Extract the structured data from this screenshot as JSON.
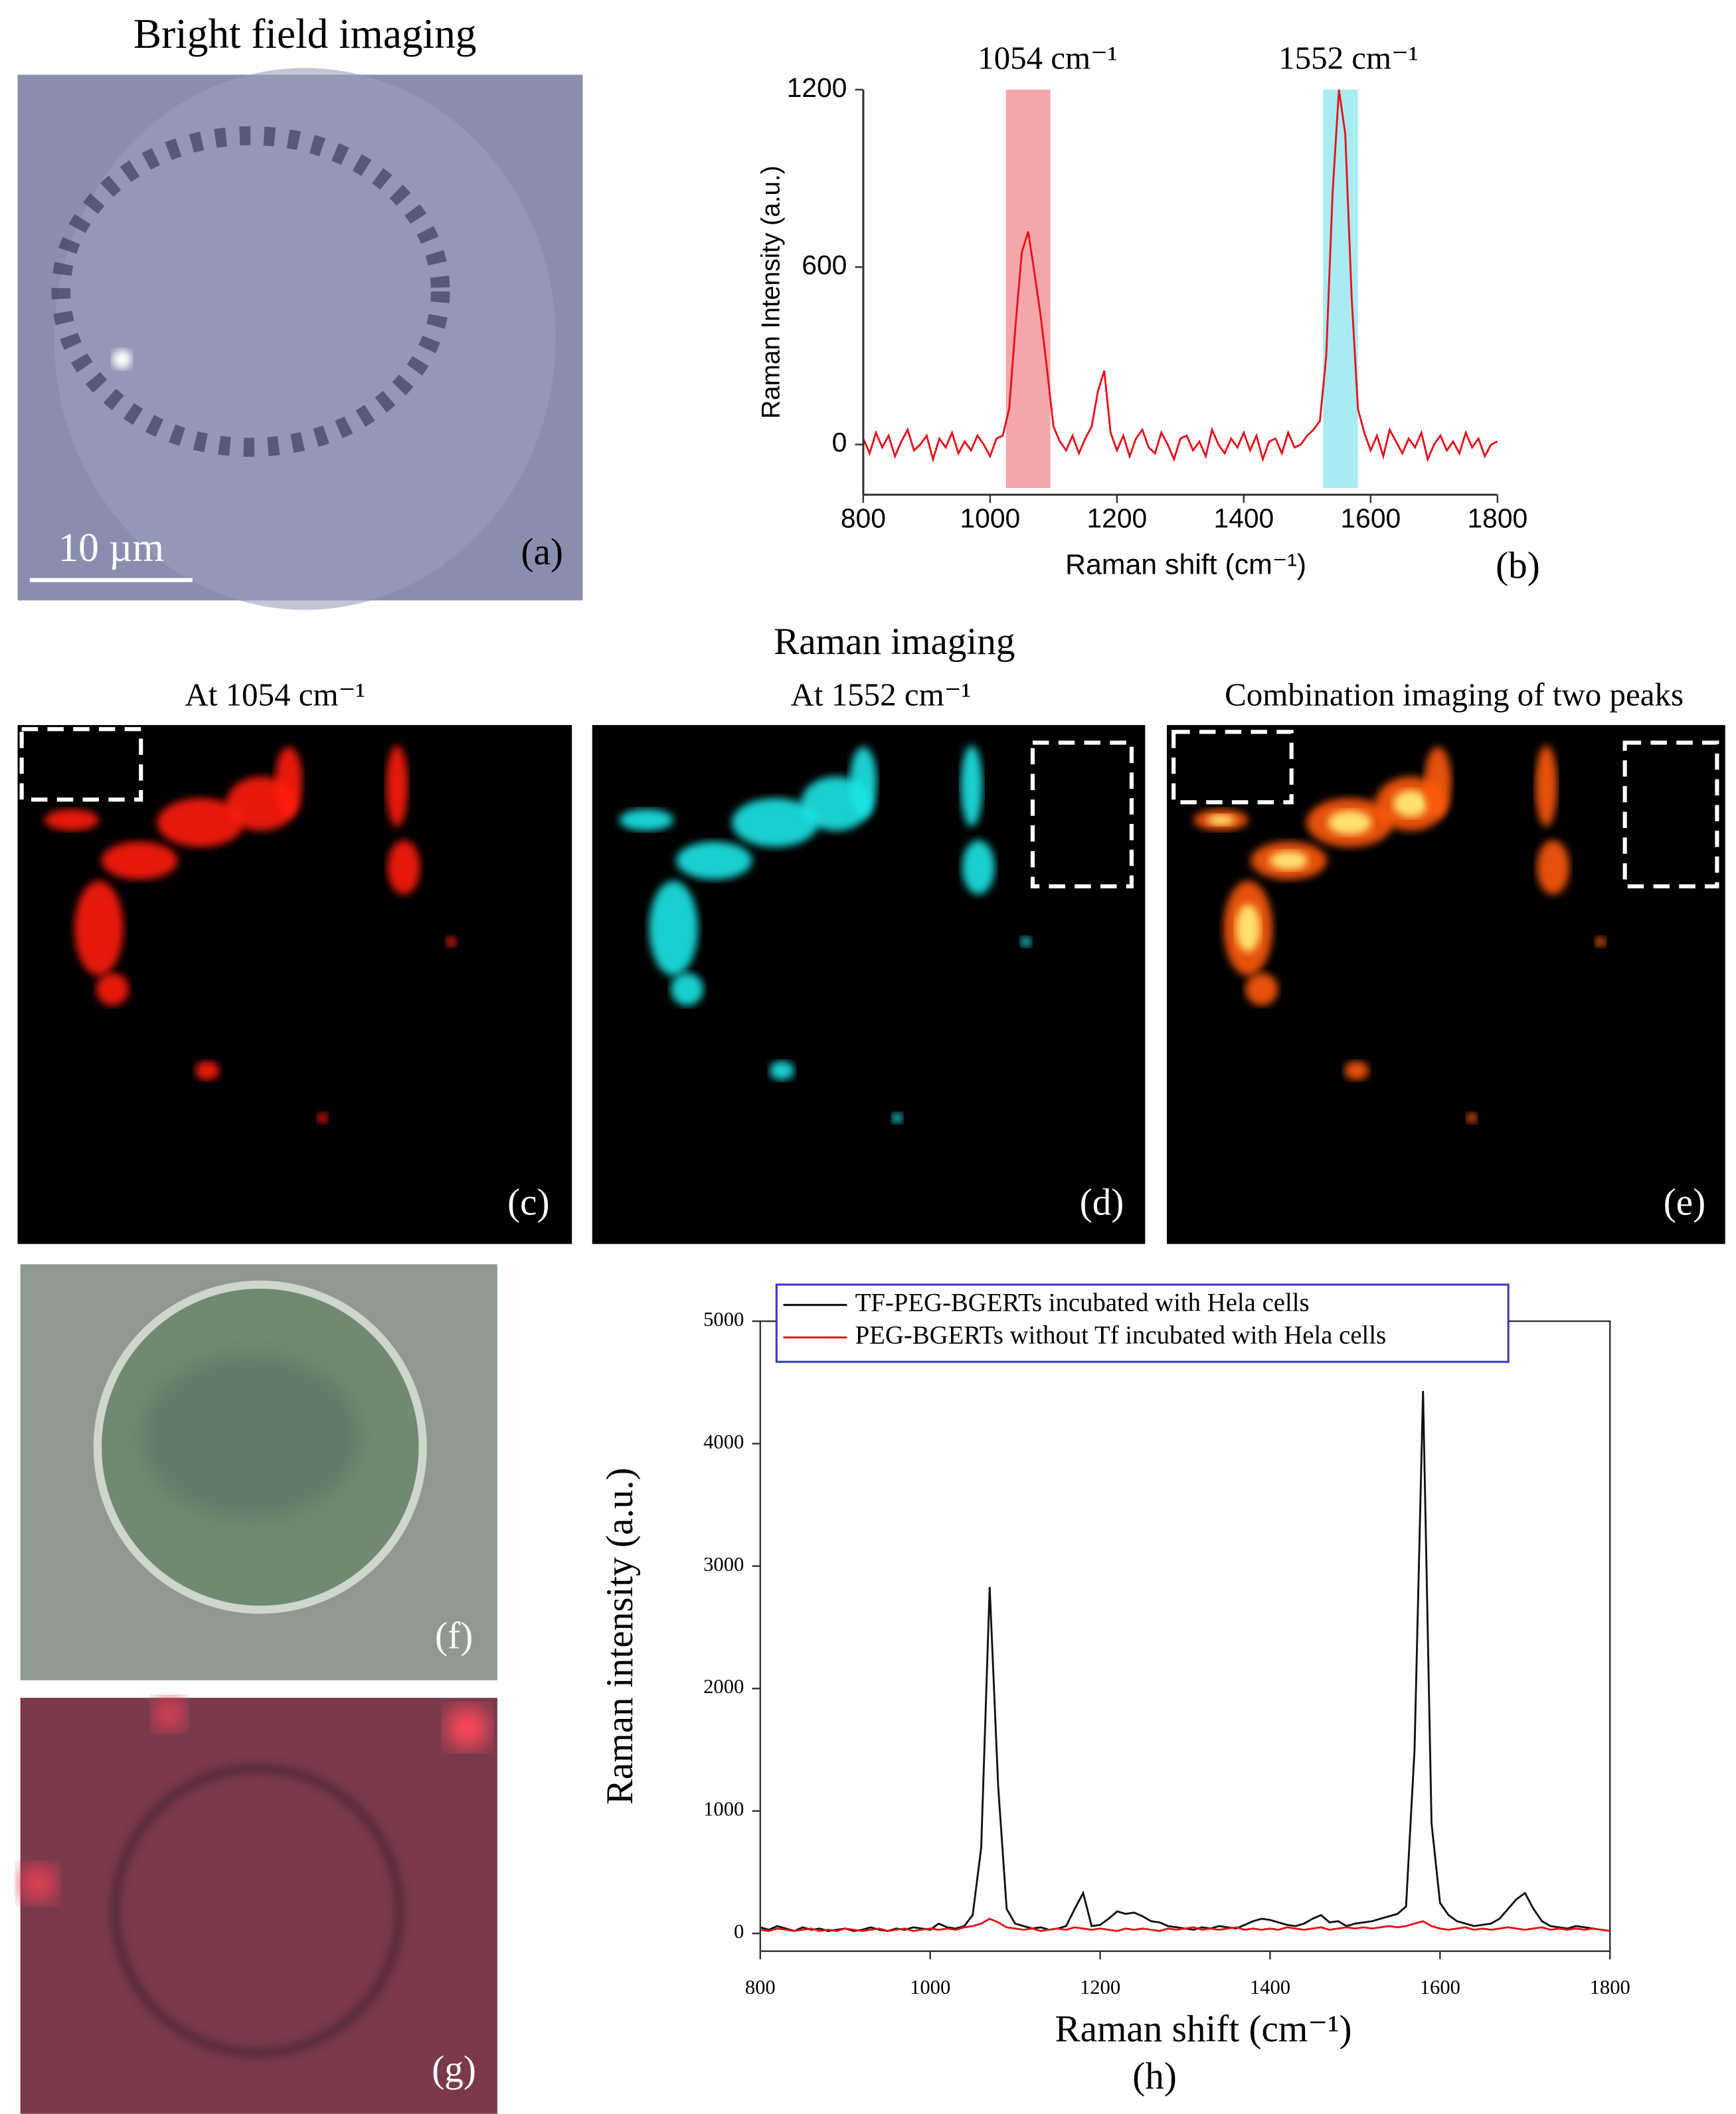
{
  "texts": {
    "bright_field_title": "Bright field imaging",
    "raman_imaging_title": "Raman imaging",
    "c_title": "At 1054 cm⁻¹",
    "d_title": "At 1552 cm⁻¹",
    "e_title": "Combination imaging of two peaks",
    "scale_bar": "10 µm"
  },
  "panel_labels": [
    "(a)",
    "(b)",
    "(c)",
    "(d)",
    "(e)",
    "(f)",
    "(g)",
    "(h)"
  ],
  "chart_data": [
    {
      "type": "line",
      "xlabel": "Raman shift (cm⁻¹)",
      "ylabel": "Raman Intensity (a.u.)",
      "color": "#e8101a",
      "annotations": [
        "1054 cm⁻¹",
        "1552 cm⁻¹"
      ],
      "bands": [
        {
          "range": [
            1025,
            1095
          ],
          "color": "#f4a6aa"
        },
        {
          "range": [
            1525,
            1580
          ],
          "color": "#a8ecf2"
        }
      ],
      "xlim": [
        800,
        1800
      ],
      "ylim": [
        -170,
        1200
      ],
      "xticks": [
        800,
        1000,
        1200,
        1400,
        1600,
        1800
      ],
      "yticks": [
        0,
        600,
        1200
      ],
      "x": [
        800,
        810,
        820,
        830,
        840,
        850,
        860,
        870,
        880,
        890,
        900,
        910,
        920,
        930,
        940,
        950,
        960,
        970,
        980,
        990,
        1000,
        1010,
        1020,
        1030,
        1040,
        1050,
        1060,
        1070,
        1080,
        1090,
        1100,
        1110,
        1120,
        1130,
        1140,
        1150,
        1160,
        1170,
        1180,
        1190,
        1200,
        1210,
        1220,
        1230,
        1240,
        1250,
        1260,
        1270,
        1280,
        1290,
        1300,
        1310,
        1320,
        1330,
        1340,
        1350,
        1360,
        1370,
        1380,
        1390,
        1400,
        1410,
        1420,
        1430,
        1440,
        1450,
        1460,
        1470,
        1480,
        1490,
        1500,
        1510,
        1520,
        1530,
        1540,
        1550,
        1560,
        1570,
        1580,
        1590,
        1600,
        1610,
        1620,
        1630,
        1640,
        1650,
        1660,
        1670,
        1680,
        1690,
        1700,
        1710,
        1720,
        1730,
        1740,
        1750,
        1760,
        1770,
        1780,
        1790,
        1800
      ],
      "values": [
        20,
        -30,
        40,
        -10,
        30,
        -40,
        10,
        50,
        -20,
        0,
        30,
        -50,
        20,
        -10,
        40,
        -30,
        10,
        -20,
        30,
        0,
        -40,
        20,
        30,
        120,
        400,
        650,
        720,
        580,
        430,
        250,
        60,
        10,
        -20,
        30,
        -30,
        20,
        60,
        180,
        250,
        40,
        -20,
        30,
        -40,
        20,
        50,
        -10,
        -30,
        40,
        0,
        -50,
        20,
        30,
        -20,
        10,
        -40,
        50,
        0,
        -30,
        20,
        -10,
        40,
        -20,
        30,
        -50,
        10,
        20,
        -30,
        40,
        -10,
        0,
        30,
        50,
        80,
        300,
        850,
        1200,
        1050,
        500,
        120,
        40,
        -20,
        30,
        -40,
        50,
        10,
        -30,
        20,
        -10,
        40,
        -50,
        0,
        30,
        -20,
        10,
        -30,
        40,
        -10,
        20,
        -40,
        0,
        10
      ]
    },
    {
      "type": "line",
      "xlabel": "Raman shift (cm⁻¹)",
      "ylabel": "Raman intensity (a.u.)",
      "xlim": [
        800,
        1800
      ],
      "ylim": [
        -145,
        5000
      ],
      "xticks": [
        800,
        1000,
        1200,
        1400,
        1600,
        1800
      ],
      "yticks": [
        0,
        1000,
        2000,
        3000,
        4000,
        5000
      ],
      "x": [
        800,
        810,
        820,
        830,
        840,
        850,
        860,
        870,
        880,
        890,
        900,
        910,
        920,
        930,
        940,
        950,
        960,
        970,
        980,
        990,
        1000,
        1010,
        1020,
        1030,
        1040,
        1050,
        1060,
        1070,
        1080,
        1090,
        1100,
        1110,
        1120,
        1130,
        1140,
        1150,
        1160,
        1170,
        1180,
        1190,
        1200,
        1210,
        1220,
        1230,
        1240,
        1250,
        1260,
        1270,
        1280,
        1290,
        1300,
        1310,
        1320,
        1330,
        1340,
        1350,
        1360,
        1370,
        1380,
        1390,
        1400,
        1410,
        1420,
        1430,
        1440,
        1450,
        1460,
        1470,
        1480,
        1490,
        1500,
        1510,
        1520,
        1530,
        1540,
        1550,
        1560,
        1570,
        1580,
        1590,
        1600,
        1610,
        1620,
        1630,
        1640,
        1650,
        1660,
        1670,
        1680,
        1690,
        1700,
        1710,
        1720,
        1730,
        1740,
        1750,
        1760,
        1770,
        1780,
        1790,
        1800
      ],
      "series": [
        {
          "name": "TF-PEG-BGERTs incubated with Hela cells",
          "color": "#111111",
          "values": [
            50,
            30,
            60,
            40,
            20,
            50,
            30,
            40,
            20,
            30,
            40,
            20,
            30,
            50,
            30,
            20,
            40,
            30,
            50,
            40,
            30,
            80,
            50,
            40,
            60,
            150,
            700,
            2830,
            1200,
            200,
            80,
            60,
            40,
            50,
            30,
            40,
            60,
            200,
            330,
            60,
            70,
            120,
            180,
            160,
            170,
            140,
            100,
            90,
            60,
            50,
            40,
            30,
            50,
            40,
            60,
            50,
            40,
            70,
            100,
            120,
            110,
            90,
            70,
            60,
            80,
            120,
            150,
            90,
            100,
            60,
            80,
            90,
            100,
            120,
            140,
            160,
            220,
            1500,
            4430,
            900,
            250,
            150,
            100,
            80,
            60,
            70,
            80,
            120,
            200,
            280,
            330,
            200,
            100,
            60,
            50,
            40,
            60,
            50,
            40,
            30,
            20
          ]
        },
        {
          "name": "PEG-BGERTs without Tf  incubated with Hela cells",
          "color": "#e8101a",
          "values": [
            30,
            20,
            40,
            30,
            20,
            30,
            40,
            20,
            30,
            20,
            40,
            30,
            20,
            30,
            40,
            20,
            30,
            40,
            20,
            30,
            40,
            30,
            40,
            30,
            50,
            60,
            80,
            120,
            90,
            50,
            40,
            30,
            40,
            20,
            30,
            40,
            30,
            50,
            40,
            30,
            40,
            30,
            20,
            40,
            30,
            40,
            30,
            20,
            40,
            30,
            40,
            50,
            30,
            40,
            30,
            40,
            50,
            30,
            40,
            30,
            40,
            30,
            50,
            40,
            30,
            40,
            50,
            30,
            40,
            50,
            40,
            50,
            40,
            50,
            60,
            50,
            60,
            80,
            100,
            60,
            40,
            30,
            40,
            50,
            30,
            40,
            30,
            40,
            50,
            40,
            30,
            40,
            50,
            30,
            40,
            30,
            40,
            30,
            40,
            30,
            20
          ]
        }
      ]
    }
  ]
}
